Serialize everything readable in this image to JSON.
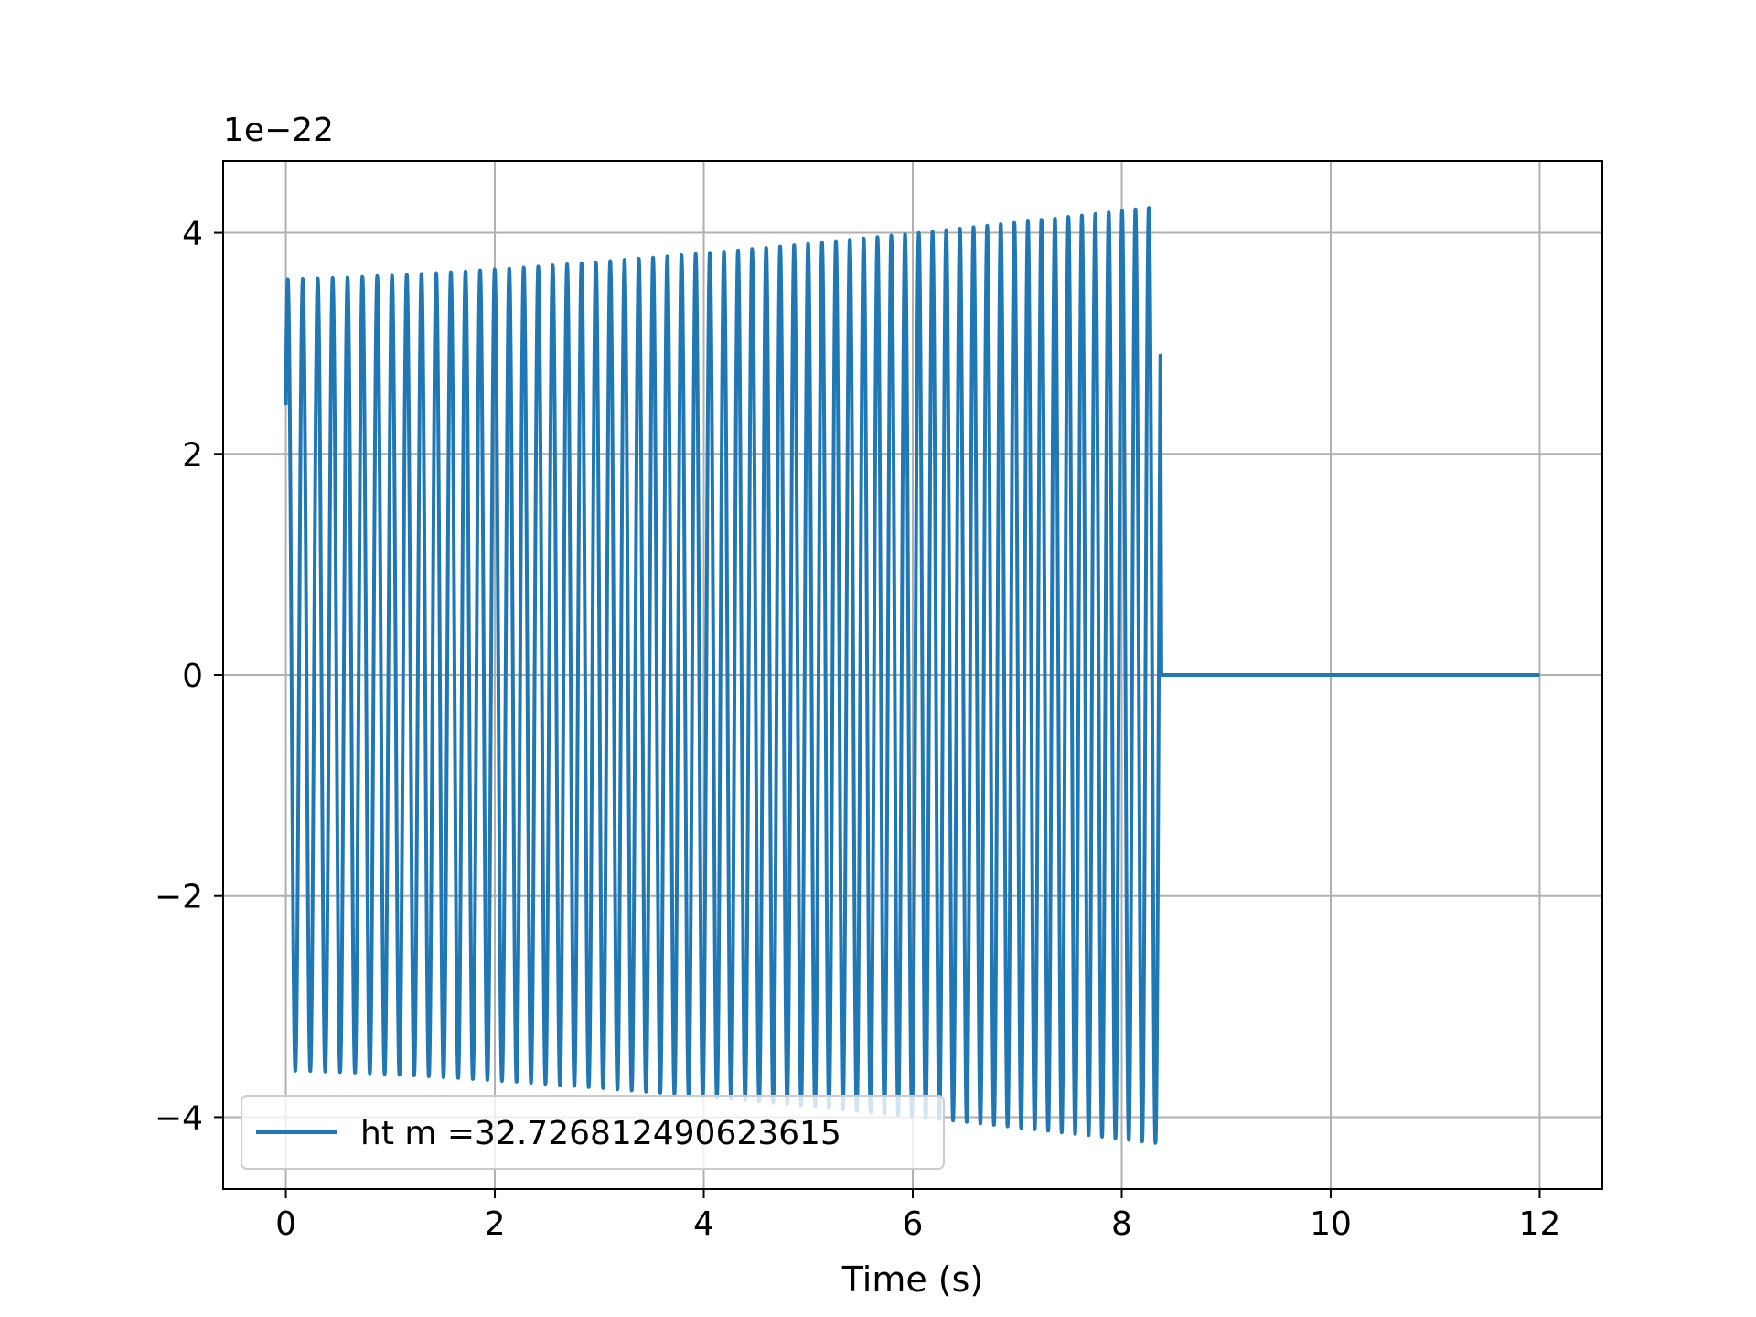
{
  "chart_data": {
    "type": "line",
    "title": "",
    "xlabel": "Time (s)",
    "ylabel": "",
    "y_offset_text": "1e−22",
    "xlim": [
      -0.6,
      12.6
    ],
    "ylim": [
      -4.65,
      4.65
    ],
    "x_ticks": [
      0,
      2,
      4,
      6,
      8,
      10,
      12
    ],
    "x_tick_labels": [
      "0",
      "2",
      "4",
      "6",
      "8",
      "10",
      "12"
    ],
    "y_ticks": [
      -4,
      -2,
      0,
      2,
      4
    ],
    "y_tick_labels": [
      "−4",
      "−2",
      "0",
      "2",
      "4"
    ],
    "grid": true,
    "legend_position": "lower-left",
    "series": [
      {
        "name": "ht m =32.726812490623615",
        "color": "#1f77b4",
        "signal_start": 0.0,
        "signal_end": 8.37,
        "signal_cycles": 62,
        "start_amplitude": 3.58,
        "end_amplitude": 4.24,
        "flat_from": 8.38,
        "flat_to": 12.0,
        "flat_value": 0
      }
    ]
  }
}
